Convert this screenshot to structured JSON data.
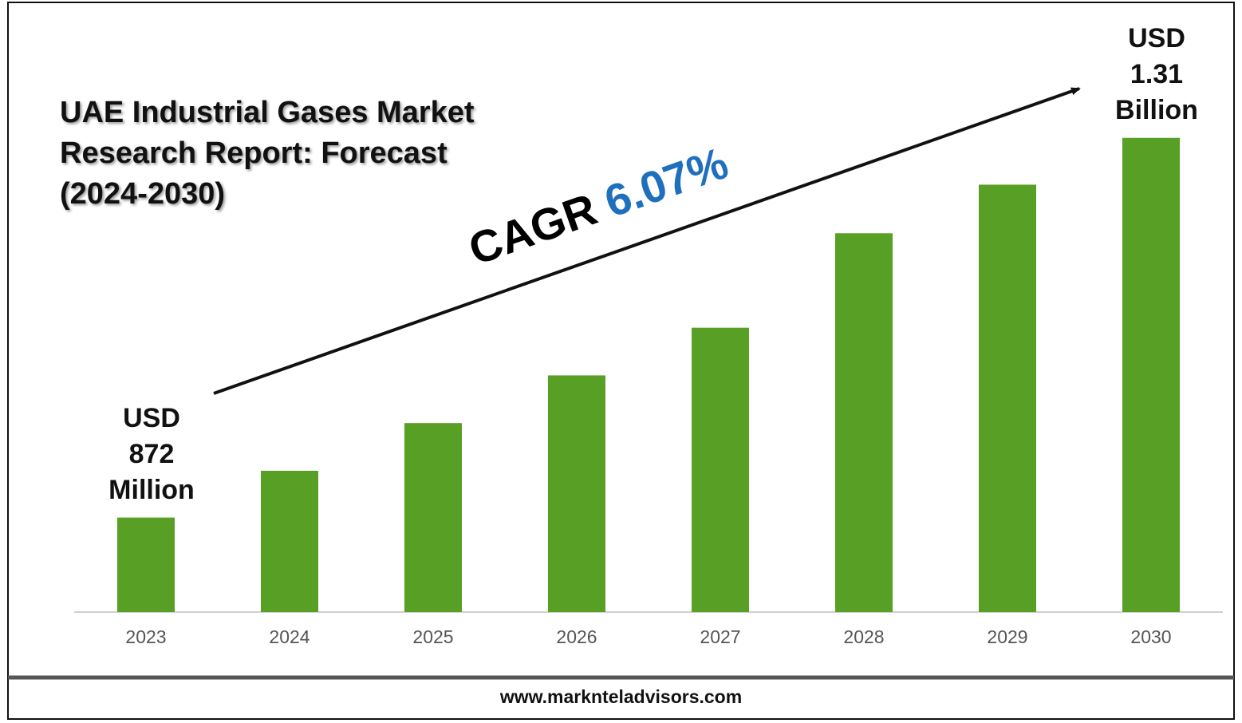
{
  "chart_data": {
    "type": "bar",
    "title": "UAE Industrial Gases Market Research Report: Forecast (2024-2030)",
    "categories": [
      "2023",
      "2024",
      "2025",
      "2026",
      "2027",
      "2028",
      "2029",
      "2030"
    ],
    "values": [
      872,
      926,
      981,
      1036,
      1091,
      1200,
      1256,
      1310
    ],
    "value_labels": [
      "USD 872 Million",
      null,
      null,
      null,
      null,
      null,
      null,
      "USD 1.31 Billion"
    ],
    "color": "#58a025",
    "ylim": [
      763,
      1423
    ],
    "cagr_label": "CAGR",
    "cagr_value": "6.07%",
    "cagr_color": "#1f6fbf"
  },
  "footer": "www.marknteladvisors.com"
}
